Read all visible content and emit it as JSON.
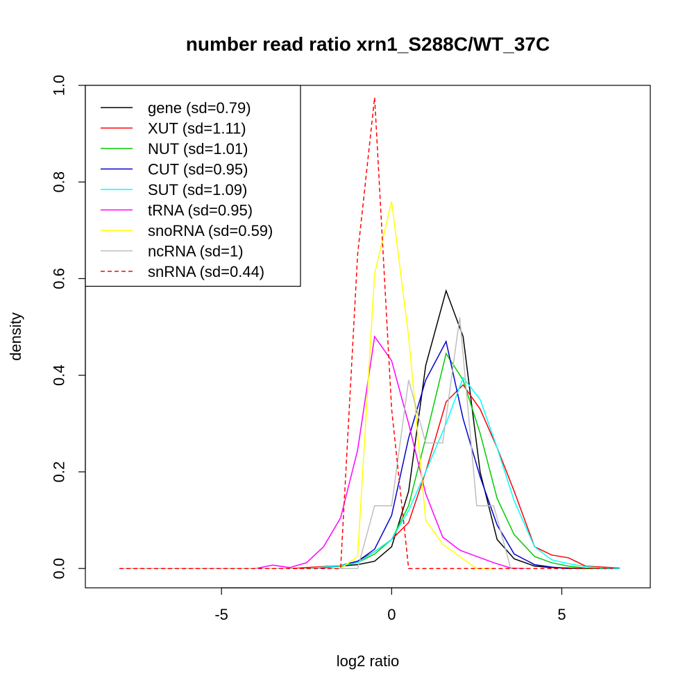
{
  "chart_data": {
    "type": "line",
    "title": "number read ratio xrn1_S288C/WT_37C",
    "xlabel": "log2 ratio",
    "ylabel": "density",
    "xlim": [
      -9,
      7.6
    ],
    "ylim": [
      -0.04,
      1.0
    ],
    "xticks": [
      -5,
      0,
      5
    ],
    "yticks": [
      0.0,
      0.2,
      0.4,
      0.6,
      0.8,
      1.0
    ],
    "xtick_labels": [
      "-5",
      "0",
      "5"
    ],
    "ytick_labels": [
      "0.0",
      "0.2",
      "0.4",
      "0.6",
      "0.8",
      "1.0"
    ],
    "grid": false,
    "legend_position": "top-left",
    "series": [
      {
        "name": "gene (sd=0.79)",
        "color": "#000000",
        "dash": false,
        "x": [
          -8.0,
          -2.5,
          -2.0,
          -1.5,
          -1.0,
          -0.5,
          0.0,
          0.5,
          1.0,
          1.6,
          2.1,
          2.6,
          3.1,
          3.6,
          4.2,
          4.7,
          5.2,
          5.7,
          6.2,
          6.7
        ],
        "y": [
          0,
          0,
          0.003,
          0.005,
          0.008,
          0.015,
          0.045,
          0.16,
          0.42,
          0.575,
          0.48,
          0.2,
          0.06,
          0.02,
          0.005,
          0.002,
          0.001,
          0,
          0,
          0
        ]
      },
      {
        "name": "XUT (sd=1.11)",
        "color": "#ff0000",
        "dash": false,
        "x": [
          -8.0,
          -3.0,
          -2.5,
          -2.0,
          -1.5,
          -1.0,
          -0.5,
          0.0,
          0.5,
          1.0,
          1.6,
          2.1,
          2.6,
          3.1,
          3.6,
          4.2,
          4.7,
          5.2,
          5.7,
          6.2,
          6.7
        ],
        "y": [
          0,
          0,
          0.002,
          0.004,
          0.006,
          0.015,
          0.035,
          0.06,
          0.095,
          0.2,
          0.345,
          0.38,
          0.33,
          0.25,
          0.16,
          0.045,
          0.028,
          0.022,
          0.005,
          0.003,
          0.001
        ]
      },
      {
        "name": "NUT (sd=1.01)",
        "color": "#00cc00",
        "dash": false,
        "x": [
          -8.0,
          -2.5,
          -2.0,
          -1.5,
          -1.0,
          -0.5,
          0.0,
          0.5,
          1.0,
          1.6,
          2.1,
          2.6,
          3.1,
          3.6,
          4.2,
          4.7,
          5.2,
          5.7,
          6.2
        ],
        "y": [
          0,
          0,
          0.002,
          0.005,
          0.012,
          0.03,
          0.06,
          0.13,
          0.27,
          0.445,
          0.39,
          0.28,
          0.145,
          0.07,
          0.025,
          0.012,
          0.005,
          0.001,
          0
        ]
      },
      {
        "name": "CUT (sd=0.95)",
        "color": "#0000cc",
        "dash": false,
        "x": [
          -8.0,
          -2.5,
          -2.0,
          -1.5,
          -1.0,
          -0.5,
          0.0,
          0.5,
          1.0,
          1.6,
          2.1,
          2.6,
          3.1,
          3.6,
          4.2,
          4.7,
          5.2
        ],
        "y": [
          0,
          0,
          0.002,
          0.006,
          0.015,
          0.04,
          0.11,
          0.27,
          0.39,
          0.47,
          0.31,
          0.19,
          0.09,
          0.03,
          0.008,
          0.003,
          0
        ]
      },
      {
        "name": "SUT (sd=1.09)",
        "color": "#00ffff",
        "dash": false,
        "x": [
          -8.0,
          -2.5,
          -2.0,
          -1.5,
          -1.0,
          -0.5,
          0.0,
          0.5,
          1.0,
          1.6,
          2.1,
          2.6,
          3.1,
          3.6,
          4.2,
          4.7,
          5.2,
          5.7,
          6.2,
          6.7
        ],
        "y": [
          0,
          0,
          0.003,
          0.006,
          0.012,
          0.035,
          0.06,
          0.12,
          0.2,
          0.3,
          0.395,
          0.35,
          0.25,
          0.14,
          0.045,
          0.018,
          0.01,
          0.004,
          0.001,
          0
        ]
      },
      {
        "name": "tRNA (sd=0.95)",
        "color": "#ff00ff",
        "dash": false,
        "x": [
          -8.0,
          -4.0,
          -3.5,
          -3.0,
          -2.5,
          -2.0,
          -1.5,
          -1.0,
          -0.5,
          0.0,
          0.5,
          1.0,
          1.5,
          2.0,
          2.5,
          3.0,
          3.5,
          4.0
        ],
        "y": [
          0,
          0,
          0.007,
          0.002,
          0.012,
          0.045,
          0.105,
          0.245,
          0.48,
          0.43,
          0.3,
          0.155,
          0.065,
          0.038,
          0.025,
          0.012,
          0.001,
          0
        ]
      },
      {
        "name": "snoRNA (sd=0.59)",
        "color": "#ffff00",
        "dash": false,
        "x": [
          -8.0,
          -1.5,
          -1.0,
          -0.5,
          0.0,
          0.5,
          1.0,
          1.5,
          2.0,
          2.5,
          3.0
        ],
        "y": [
          0,
          0,
          0.025,
          0.61,
          0.76,
          0.48,
          0.1,
          0.05,
          0.025,
          0,
          0
        ]
      },
      {
        "name": "ncRNA (sd=1)",
        "color": "#bebebe",
        "dash": false,
        "x": [
          -8.0,
          -1.0,
          -0.5,
          0.0,
          0.5,
          1.0,
          1.5,
          2.0,
          2.5,
          3.0,
          3.5,
          4.0
        ],
        "y": [
          0,
          0,
          0.13,
          0.13,
          0.39,
          0.26,
          0.26,
          0.52,
          0.13,
          0.13,
          0,
          0
        ]
      },
      {
        "name": "snRNA (sd=0.44)",
        "color": "#ff0000",
        "dash": true,
        "x": [
          -8.0,
          -1.5,
          -1.0,
          -0.5,
          0.0,
          0.5,
          1.0,
          1.5,
          2.0,
          2.5,
          3.0,
          3.5,
          4.0,
          4.5,
          5.0,
          5.5,
          6.0,
          6.5
        ],
        "y": [
          0,
          0,
          0.65,
          0.975,
          0.33,
          0,
          0,
          0,
          0,
          0,
          0,
          0,
          0,
          0,
          0,
          0,
          0,
          0
        ]
      }
    ]
  }
}
